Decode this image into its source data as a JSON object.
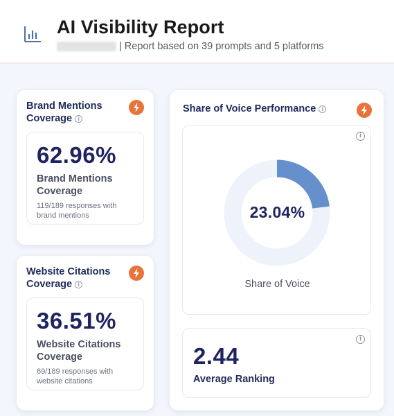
{
  "header": {
    "title": "AI Visibility Report",
    "subtitle": "| Report based on 39 prompts and 5 platforms",
    "icon": "bar-chart-icon"
  },
  "brand_mentions": {
    "title_line1": "Brand Mentions",
    "title_line2": "Coverage",
    "value": "62.96%",
    "label_line1": "Brand Mentions",
    "label_line2": "Coverage",
    "note_line1": "119/189 responses with",
    "note_line2": "brand mentions"
  },
  "website_citations": {
    "title_line1": "Website Citations",
    "title_line2": "Coverage",
    "value": "36.51%",
    "label_line1": "Website Citations",
    "label_line2": "Coverage",
    "note_line1": "69/189 responses with",
    "note_line2": "website citations"
  },
  "share_of_voice": {
    "title": "Share of Voice Performance",
    "value": "23.04%",
    "fraction": 0.2304,
    "label": "Share of Voice"
  },
  "average_ranking": {
    "value": "2.44",
    "label": "Average Ranking"
  },
  "icons": {
    "info": "i",
    "bolt": "lightning-bolt-icon"
  },
  "colors": {
    "accent_orange": "#e8743a",
    "donut_fill": "#6690cc",
    "donut_track": "#eef2fa",
    "number_navy": "#1f2460"
  }
}
